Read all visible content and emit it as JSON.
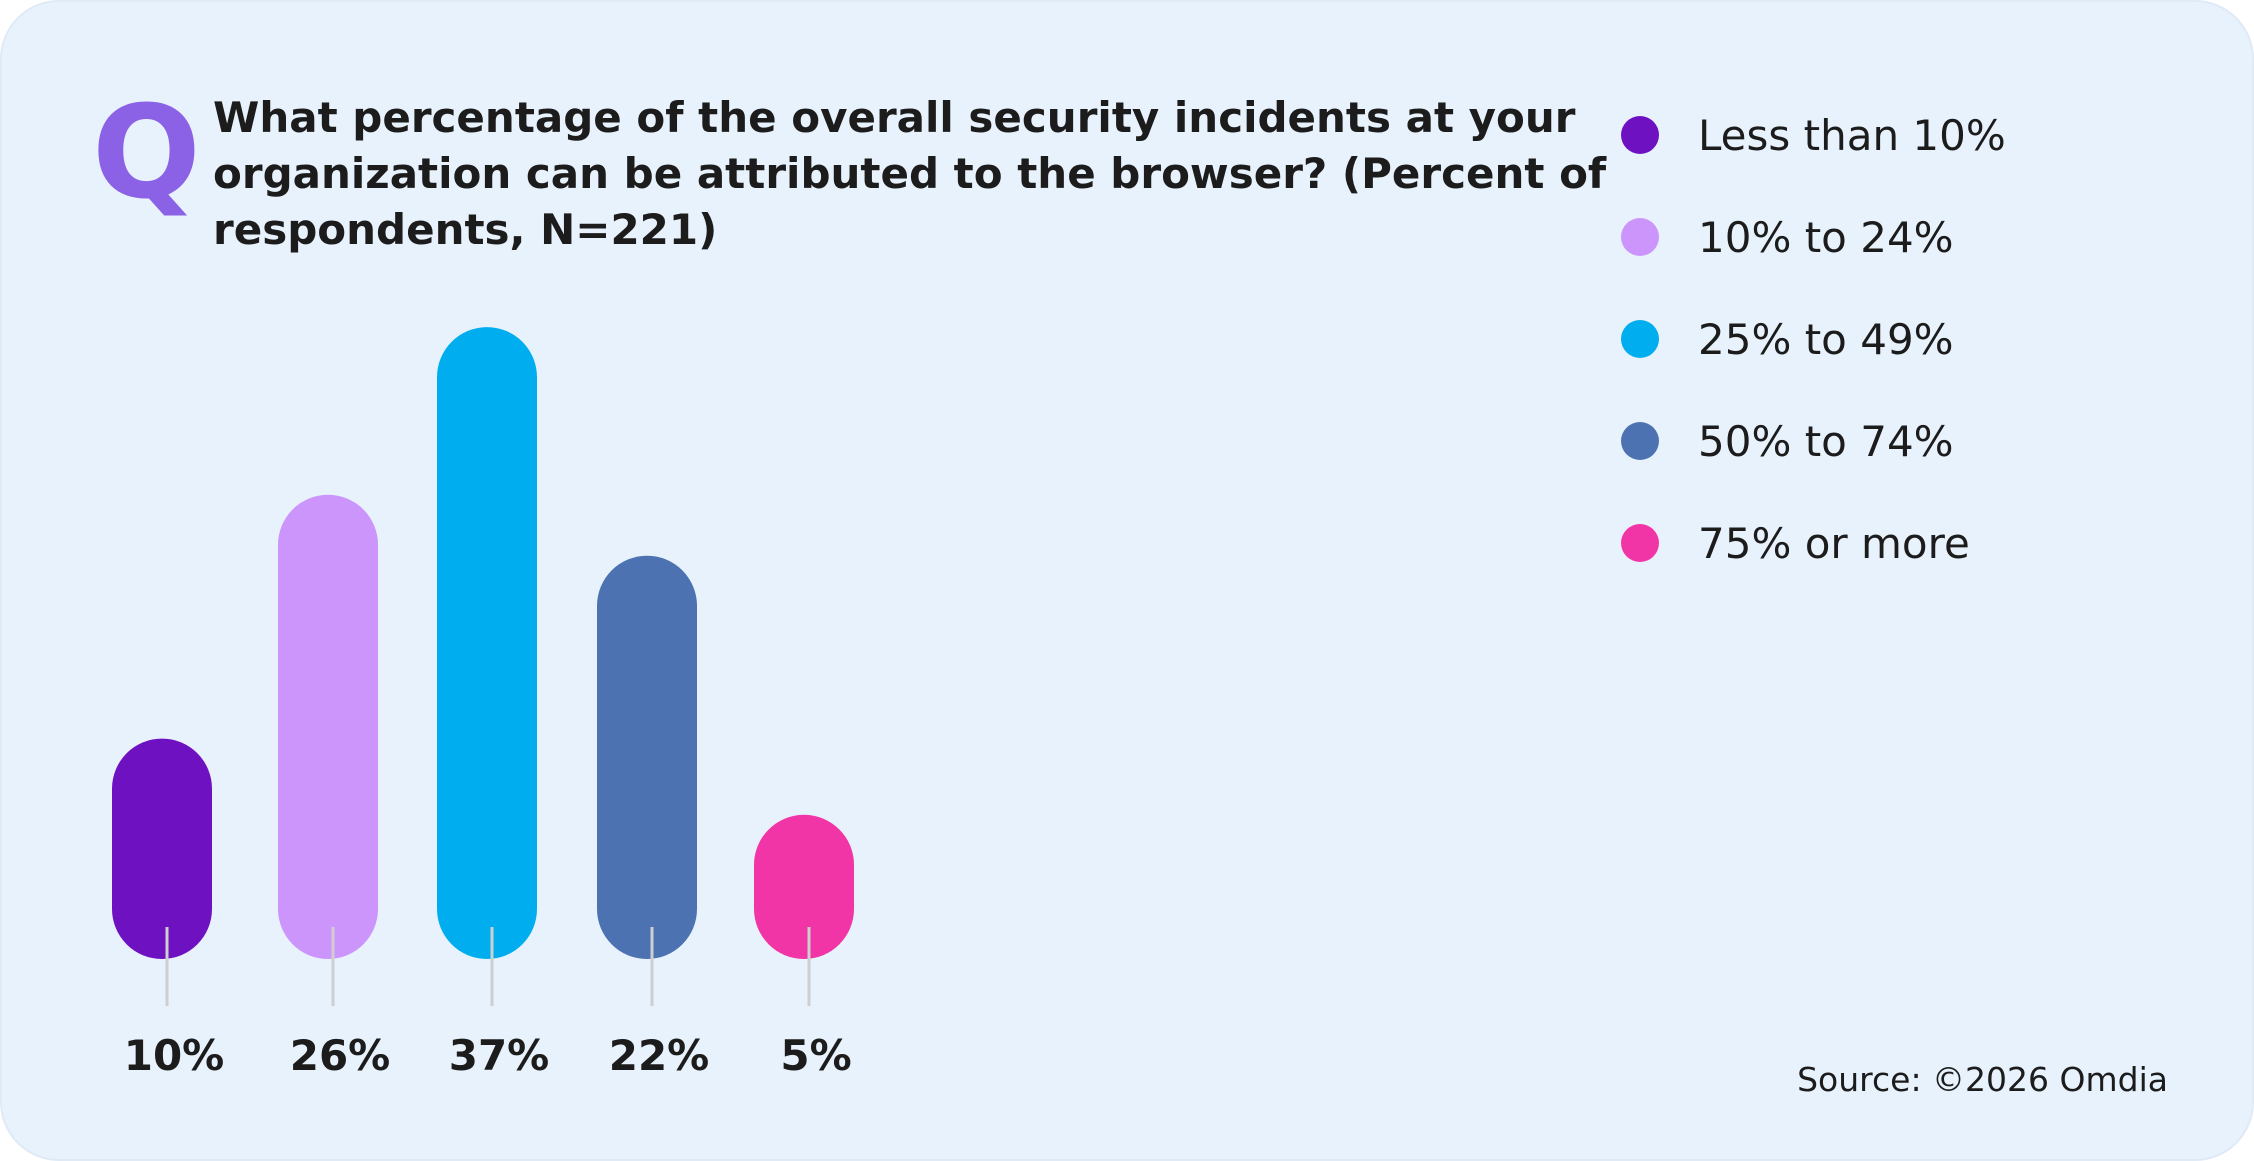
{
  "chart_data": {
    "type": "bar",
    "question_marker": "Q",
    "title_lines": [
      "What percentage of the overall security incidents at your",
      "organization can be attributed to the browser? (Percent of",
      "respondents, N=221)"
    ],
    "categories": [
      "Less than 10%",
      "10% to 24%",
      "25% to 49%",
      "50% to 74%",
      "75% or more"
    ],
    "values": [
      10,
      26,
      37,
      22,
      5
    ],
    "value_labels": [
      "10%",
      "26%",
      "37%",
      "22%",
      "5%"
    ],
    "colors": [
      "#6e11c1",
      "#cc95fb",
      "#00adee",
      "#4c72b2",
      "#f135a6"
    ],
    "source": "Source: ©2026 Omdia"
  }
}
